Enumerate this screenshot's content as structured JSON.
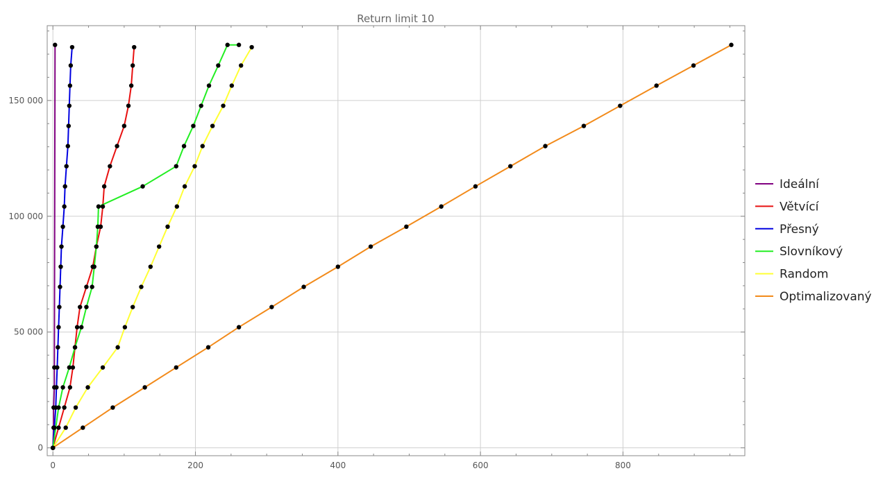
{
  "chart_data": {
    "type": "line",
    "title": "Return limit 10",
    "xlabel": "",
    "ylabel": "",
    "xlim": [
      -8,
      971
    ],
    "ylim": [
      -3400,
      182300
    ],
    "x_ticks": [
      0,
      200,
      400,
      600,
      800
    ],
    "x_tick_labels": [
      "0",
      "200",
      "400",
      "600",
      "800"
    ],
    "y_ticks": [
      0,
      50000,
      100000,
      150000
    ],
    "y_tick_labels": [
      "0",
      "50 000",
      "100 000",
      "150 000"
    ],
    "grid": true,
    "legend_position": "right",
    "colors": {
      "point": "#000000",
      "grid": "#cfcfcf",
      "frame": "#888888"
    },
    "series": [
      {
        "name": "Ideální",
        "color": "#800080",
        "points": [
          [
            0,
            0
          ],
          [
            1,
            8700
          ],
          [
            1,
            17400
          ],
          [
            2,
            26100
          ],
          [
            2,
            34700
          ],
          [
            3,
            174000
          ]
        ]
      },
      {
        "name": "Větvící",
        "color": "#e81010",
        "points": [
          [
            0,
            0
          ],
          [
            8,
            8700
          ],
          [
            16,
            17400
          ],
          [
            24,
            26100
          ],
          [
            28,
            34700
          ],
          [
            31,
            43400
          ],
          [
            34,
            52100
          ],
          [
            38,
            60800
          ],
          [
            47,
            69500
          ],
          [
            56,
            78200
          ],
          [
            61,
            86900
          ],
          [
            67,
            95500
          ],
          [
            70,
            104200
          ],
          [
            72,
            112900
          ],
          [
            80,
            121600
          ],
          [
            90,
            130300
          ],
          [
            100,
            139000
          ],
          [
            106,
            147700
          ],
          [
            110,
            156400
          ],
          [
            112,
            165100
          ],
          [
            114,
            173000
          ]
        ]
      },
      {
        "name": "Přesný",
        "color": "#0000e0",
        "points": [
          [
            0,
            0
          ],
          [
            2,
            8700
          ],
          [
            4,
            17400
          ],
          [
            5,
            26100
          ],
          [
            6,
            34700
          ],
          [
            7,
            43400
          ],
          [
            8,
            52100
          ],
          [
            9,
            60800
          ],
          [
            10,
            69500
          ],
          [
            11,
            78200
          ],
          [
            12,
            86900
          ],
          [
            14,
            95500
          ],
          [
            16,
            104200
          ],
          [
            17,
            112900
          ],
          [
            19,
            121600
          ],
          [
            21,
            130300
          ],
          [
            22,
            139000
          ],
          [
            23,
            147700
          ],
          [
            24,
            156400
          ],
          [
            25,
            165100
          ],
          [
            27,
            173000
          ]
        ]
      },
      {
        "name": "Slovníkový",
        "color": "#22ee22",
        "points": [
          [
            0,
            0
          ],
          [
            8,
            17400
          ],
          [
            14,
            26100
          ],
          [
            23,
            34700
          ],
          [
            31,
            43400
          ],
          [
            40,
            52100
          ],
          [
            47,
            60800
          ],
          [
            55,
            69500
          ],
          [
            58,
            78200
          ],
          [
            61,
            86900
          ],
          [
            63,
            95500
          ],
          [
            64,
            104200
          ],
          [
            126,
            112900
          ],
          [
            173,
            121600
          ],
          [
            184,
            130300
          ],
          [
            197,
            139000
          ],
          [
            208,
            147700
          ],
          [
            219,
            156400
          ],
          [
            232,
            165100
          ],
          [
            245,
            174000
          ],
          [
            261,
            174000
          ]
        ]
      },
      {
        "name": "Random",
        "color": "#ffff33",
        "points": [
          [
            0,
            0
          ],
          [
            18,
            8700
          ],
          [
            32,
            17400
          ],
          [
            49,
            26100
          ],
          [
            70,
            34700
          ],
          [
            91,
            43400
          ],
          [
            101,
            52100
          ],
          [
            112,
            60800
          ],
          [
            124,
            69500
          ],
          [
            137,
            78200
          ],
          [
            149,
            86900
          ],
          [
            161,
            95500
          ],
          [
            174,
            104200
          ],
          [
            185,
            112900
          ],
          [
            199,
            121600
          ],
          [
            210,
            130300
          ],
          [
            224,
            139000
          ],
          [
            239,
            147700
          ],
          [
            251,
            156400
          ],
          [
            264,
            165100
          ],
          [
            279,
            173000
          ]
        ]
      },
      {
        "name": "Optimalizovaný",
        "color": "#f28a1a",
        "points": [
          [
            0,
            0
          ],
          [
            42,
            8700
          ],
          [
            84,
            17400
          ],
          [
            129,
            26100
          ],
          [
            173,
            34700
          ],
          [
            218,
            43400
          ],
          [
            261,
            52100
          ],
          [
            307,
            60800
          ],
          [
            352,
            69500
          ],
          [
            400,
            78200
          ],
          [
            446,
            86900
          ],
          [
            496,
            95500
          ],
          [
            545,
            104200
          ],
          [
            593,
            112900
          ],
          [
            642,
            121600
          ],
          [
            691,
            130300
          ],
          [
            745,
            139000
          ],
          [
            796,
            147700
          ],
          [
            847,
            156400
          ],
          [
            899,
            165100
          ],
          [
            952,
            174000
          ]
        ]
      }
    ]
  }
}
